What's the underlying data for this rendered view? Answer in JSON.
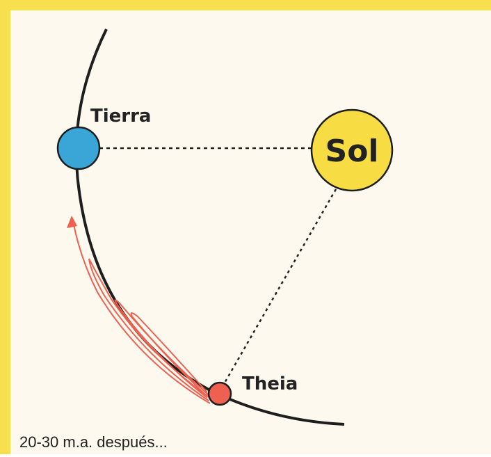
{
  "labels": {
    "earth": "Tierra",
    "sun": "Sol",
    "theia": "Theia"
  },
  "caption": "20-30 m.a. después..."
}
